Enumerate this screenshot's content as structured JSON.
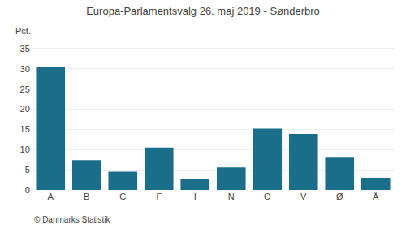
{
  "chart_data": {
    "type": "bar",
    "title": "Europa-Parlamentsvalg 26. maj 2019 - Sønderbro",
    "categories": [
      "A",
      "B",
      "C",
      "F",
      "I",
      "N",
      "O",
      "V",
      "Ø",
      "Å"
    ],
    "values": [
      30.5,
      7.4,
      4.5,
      10.5,
      2.8,
      5.6,
      15.2,
      13.9,
      8.2,
      3.0
    ],
    "color": "#1a6e8a",
    "ylabel": "Pct.",
    "ylim": [
      0,
      37
    ],
    "yticks": [
      0,
      5,
      10,
      15,
      20,
      25,
      30,
      35
    ],
    "grid": true,
    "annotations": [
      "© Danmarks Statistik"
    ]
  }
}
